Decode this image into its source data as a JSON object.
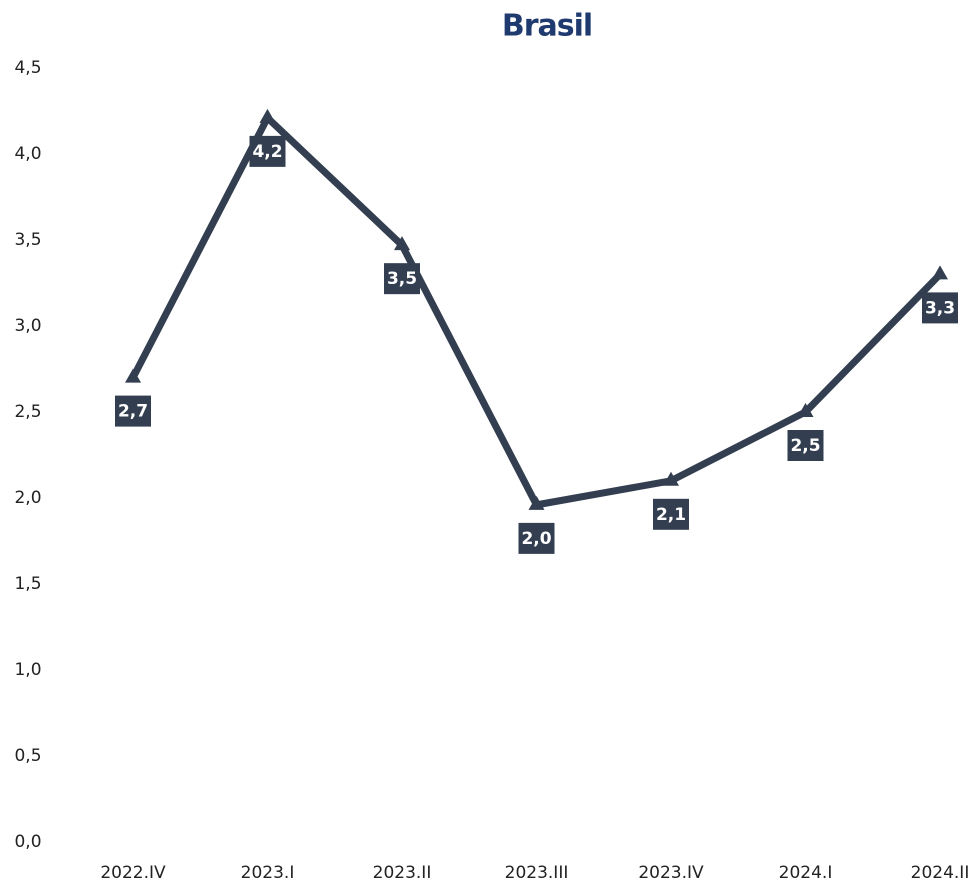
{
  "chart_data": {
    "type": "line",
    "title": "Brasil",
    "categories": [
      "2022.IV",
      "2023.I",
      "2023.II",
      "2023.III",
      "2023.IV",
      "2024.I",
      "2024.II"
    ],
    "series": [
      {
        "name": "Brasil",
        "color": "#333f50",
        "values": [
          2.7,
          4.21,
          3.47,
          1.96,
          2.1,
          2.5,
          3.3
        ],
        "value_labels": [
          "2,7",
          "4,2",
          "3,5",
          "2,0",
          "2,1",
          "2,5",
          "3,3"
        ]
      }
    ],
    "ylim": [
      0,
      4.5
    ],
    "yticks": [
      {
        "value": 0,
        "label": "0,0"
      },
      {
        "value": 0.5,
        "label": "0,5"
      },
      {
        "value": 1,
        "label": "1,0"
      },
      {
        "value": 1.5,
        "label": "1,5"
      },
      {
        "value": 2,
        "label": "2,0"
      },
      {
        "value": 2.5,
        "label": "2,5"
      },
      {
        "value": 3,
        "label": "3,0"
      },
      {
        "value": 3.5,
        "label": "3,5"
      },
      {
        "value": 4,
        "label": "4,0"
      },
      {
        "value": 4.5,
        "label": "4,5"
      }
    ],
    "grid": false
  }
}
